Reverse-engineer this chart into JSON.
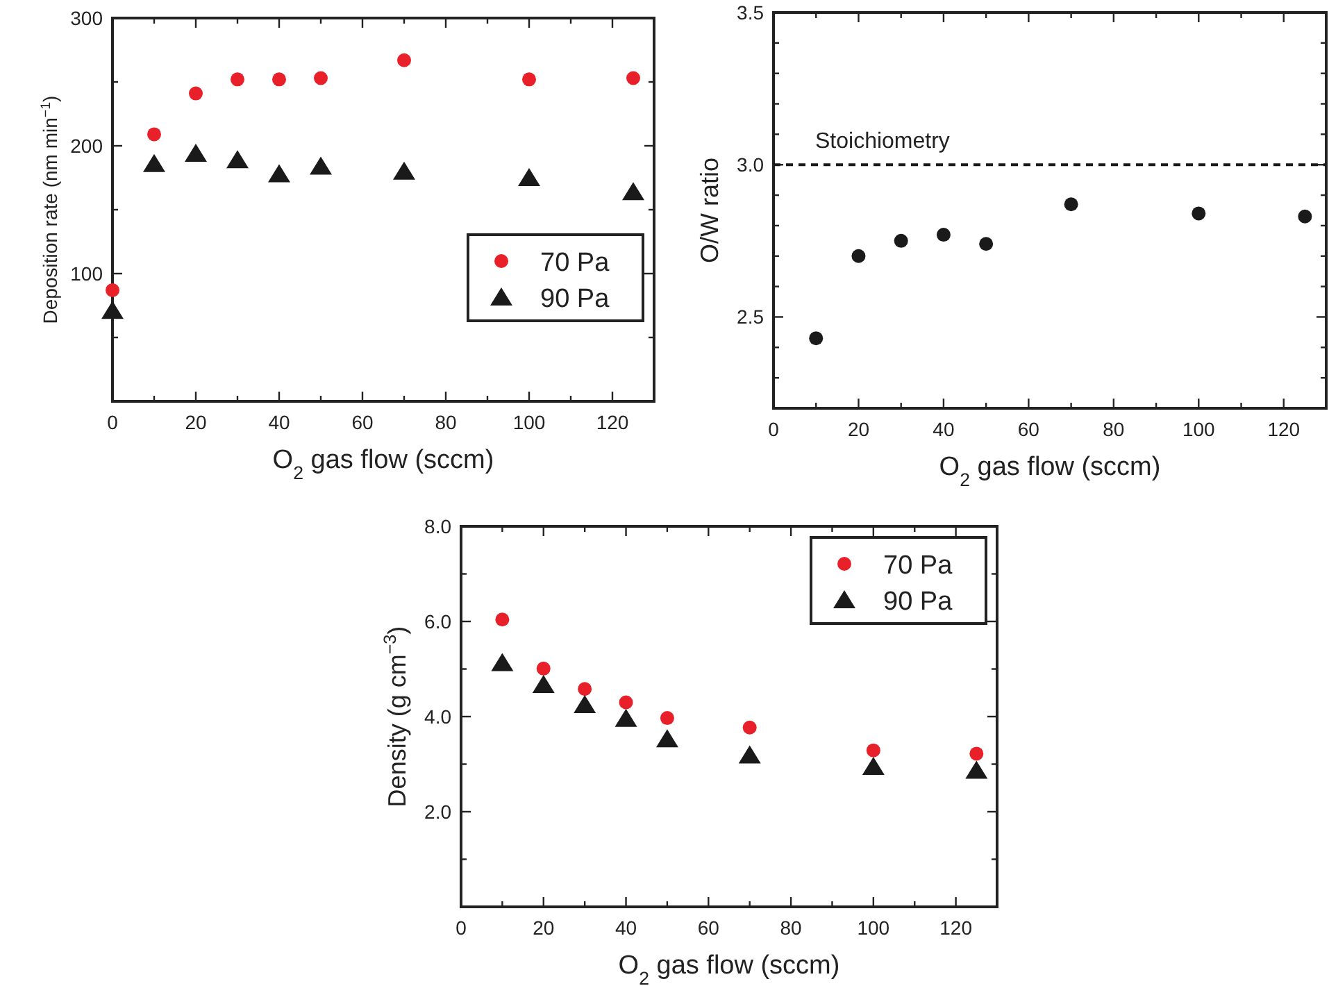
{
  "chart_data": [
    {
      "type": "scatter",
      "xlabel": "O$_{2}$ gas flow (sccm)",
      "ylabel": "Deposition rate (nm min$^{−1}$)",
      "xlim": [
        0,
        130
      ],
      "ylim": [
        0,
        300
      ],
      "xticks": [
        0,
        {
          "value": 10,
          "label": null
        },
        20,
        {
          "value": 30,
          "label": null
        },
        40,
        {
          "value": 50,
          "label": null
        },
        60,
        {
          "value": 70,
          "label": null
        },
        80,
        {
          "value": 90,
          "label": null
        },
        100,
        {
          "value": 110,
          "label": null
        },
        120
      ],
      "yticks": [
        {
          "value": 50,
          "label": null
        },
        100,
        {
          "value": 150,
          "label": null
        },
        200,
        {
          "value": 250,
          "label": null
        },
        300
      ],
      "grid": false,
      "legend": "right",
      "series": [
        {
          "name": "70 Pa",
          "color": "#e8202a",
          "marker": "circle",
          "x": [
            0,
            10,
            20,
            30,
            40,
            50,
            70,
            100,
            125
          ],
          "values": [
            87,
            209,
            241,
            252,
            252,
            253,
            267,
            252,
            253
          ]
        },
        {
          "name": "90 Pa",
          "color": "#1a1a1a",
          "marker": "triangle",
          "x": [
            0,
            10,
            20,
            30,
            40,
            50,
            70,
            100,
            125
          ],
          "values": [
            71,
            186,
            194,
            189,
            178,
            184,
            180,
            175,
            164
          ]
        }
      ]
    },
    {
      "type": "scatter",
      "xlabel": "O$_{2}$ gas flow (sccm)",
      "ylabel": "O/W ratio",
      "xlim": [
        0,
        130
      ],
      "ylim": [
        2.2,
        3.5
      ],
      "xticks": [
        0,
        {
          "value": 10,
          "label": null
        },
        20,
        {
          "value": 30,
          "label": null
        },
        40,
        {
          "value": 50,
          "label": null
        },
        60,
        {
          "value": 70,
          "label": null
        },
        80,
        {
          "value": 90,
          "label": null
        },
        100,
        {
          "value": 110,
          "label": null
        },
        120
      ],
      "yticks": [
        {
          "value": 2.3,
          "label": null
        },
        {
          "value": 2.4,
          "label": null
        },
        {
          "value": 2.5,
          "label": "2.5"
        },
        {
          "value": 2.6,
          "label": null
        },
        {
          "value": 2.7,
          "label": null
        },
        {
          "value": 2.8,
          "label": null
        },
        {
          "value": 2.9,
          "label": null
        },
        {
          "value": 3.0,
          "label": "3.0"
        },
        {
          "value": 3.1,
          "label": null
        },
        {
          "value": 3.2,
          "label": null
        },
        {
          "value": 3.3,
          "label": null
        },
        {
          "value": 3.4,
          "label": null
        },
        {
          "value": 3.5,
          "label": "3.5"
        }
      ],
      "grid": false,
      "legend": false,
      "ref_lines": [
        {
          "axis": "y",
          "value": 3.0,
          "label": "Stoichiometry",
          "color": "#1a1a1a",
          "line_style": "dashed"
        }
      ],
      "series": [
        {
          "color": "#1a1a1a",
          "marker": "circle",
          "x": [
            10,
            20,
            30,
            40,
            50,
            70,
            100,
            125
          ],
          "values": [
            2.43,
            2.7,
            2.75,
            2.77,
            2.74,
            2.87,
            2.84,
            2.83
          ]
        }
      ]
    },
    {
      "type": "scatter",
      "xlabel": "O$_{2}$ gas flow (sccm)",
      "ylabel": "Density (g cm$^{−3}$)",
      "xlim": [
        0,
        130
      ],
      "ylim": [
        0,
        8
      ],
      "xticks": [
        0,
        {
          "value": 10,
          "label": null
        },
        20,
        {
          "value": 30,
          "label": null
        },
        40,
        {
          "value": 50,
          "label": null
        },
        60,
        {
          "value": 70,
          "label": null
        },
        80,
        {
          "value": 90,
          "label": null
        },
        100,
        {
          "value": 110,
          "label": null
        },
        120
      ],
      "yticks": [
        {
          "value": 1,
          "label": null
        },
        {
          "value": 2,
          "label": "2.0"
        },
        {
          "value": 3,
          "label": null
        },
        {
          "value": 4,
          "label": "4.0"
        },
        {
          "value": 5,
          "label": null
        },
        {
          "value": 6,
          "label": "6.0"
        },
        {
          "value": 7,
          "label": null
        },
        {
          "value": 8,
          "label": "8.0"
        }
      ],
      "grid": false,
      "legend": "top right",
      "series": [
        {
          "name": "70 Pa",
          "color": "#e8202a",
          "marker": "circle",
          "x": [
            10,
            20,
            30,
            40,
            50,
            70,
            100,
            125
          ],
          "values": [
            6.04,
            5.01,
            4.58,
            4.3,
            3.97,
            3.77,
            3.29,
            3.22
          ]
        },
        {
          "name": "90 Pa",
          "color": "#1a1a1a",
          "marker": "triangle",
          "x": [
            10,
            20,
            30,
            40,
            50,
            70,
            100,
            125
          ],
          "values": [
            5.13,
            4.67,
            4.25,
            3.96,
            3.53,
            3.19,
            2.95,
            2.87
          ]
        }
      ]
    }
  ]
}
